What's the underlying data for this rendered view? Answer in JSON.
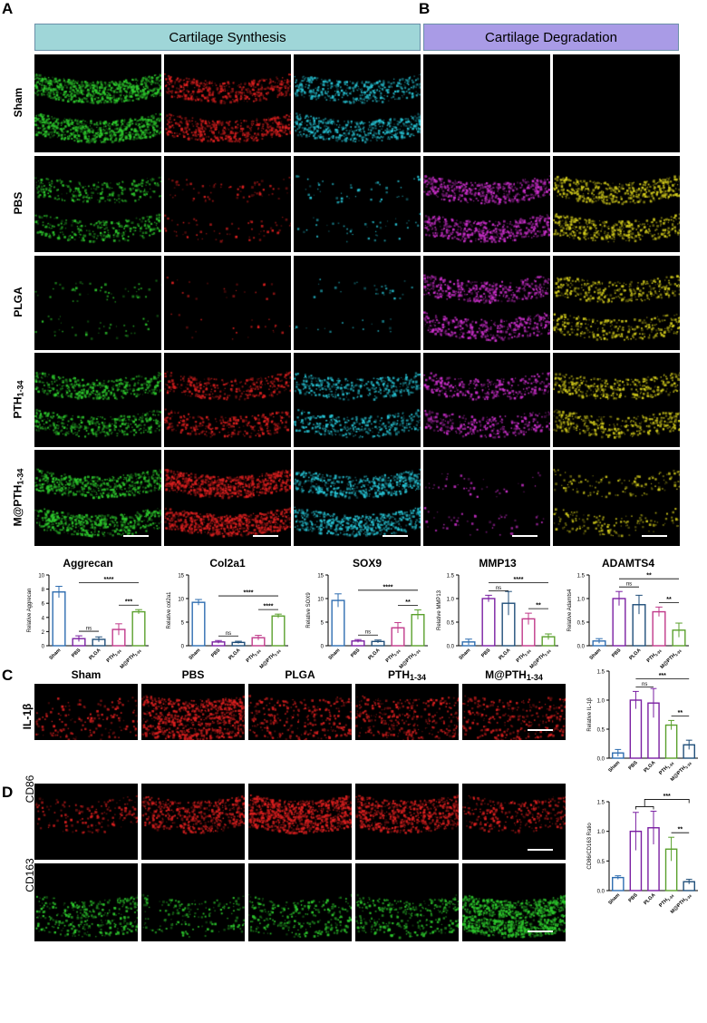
{
  "panels": {
    "a": "A",
    "b": "B",
    "c": "C",
    "d": "D"
  },
  "banners": {
    "synthesis": "Cartilage Synthesis",
    "degradation": "Cartilage Degradation"
  },
  "row_labels": [
    "Sham",
    "PBS",
    "PLGA",
    "PTH1-34",
    "M@PTH1-34"
  ],
  "row_labels_fmt": [
    {
      "main": "Sham",
      "sub": ""
    },
    {
      "main": "PBS",
      "sub": ""
    },
    {
      "main": "PLGA",
      "sub": ""
    },
    {
      "main": "PTH",
      "sub": "1-34"
    },
    {
      "main": "M@PTH",
      "sub": "1-34"
    }
  ],
  "c_cols": [
    {
      "main": "Sham",
      "sub": ""
    },
    {
      "main": "PBS",
      "sub": ""
    },
    {
      "main": "PLGA",
      "sub": ""
    },
    {
      "main": "PTH",
      "sub": "1-34"
    },
    {
      "main": "M@PTH",
      "sub": "1-34"
    }
  ],
  "c_row_label": "IL-1β",
  "d_row_labels": [
    "CD86",
    "CD163"
  ],
  "colors": {
    "sham": "#2e6db0",
    "pbs": "#7a1fa2",
    "plga": "#1f4e79",
    "pth": "#5aa02c",
    "mpth": "#5aa02c",
    "pth_pink": "#c0398a",
    "banner_syn": "#9fd6d8",
    "banner_deg": "#a99be6",
    "green_stain": "#2ecc2e",
    "red_stain": "#e02020",
    "cyan_stain": "#27c5d6",
    "magenta_stain": "#d030d0",
    "yellow_stain": "#d6cf1c"
  },
  "chart_data": [
    {
      "type": "bar",
      "title": "Aggrecan",
      "ylabel": "Relative Aggrecan",
      "categories": [
        "Sham",
        "PBS",
        "PLGA",
        "PTH1-34",
        "M@PTH1-34"
      ],
      "values": [
        7.6,
        1.0,
        0.9,
        2.3,
        4.8
      ],
      "errors": [
        0.8,
        0.4,
        0.35,
        0.8,
        0.3
      ],
      "ylim": [
        0,
        10
      ],
      "yticks": [
        0,
        2,
        4,
        6,
        8,
        10
      ],
      "sig": [
        {
          "from": 1,
          "to": 4,
          "label": "****"
        },
        {
          "from": 1,
          "to": 2,
          "label": "ns"
        },
        {
          "from": 3,
          "to": 4,
          "label": "***"
        }
      ]
    },
    {
      "type": "bar",
      "title": "Col2a1",
      "ylabel": "Relative col2a1",
      "categories": [
        "Sham",
        "PBS",
        "PLGA",
        "PTH1-34",
        "M@PTH1-34"
      ],
      "values": [
        9.2,
        0.8,
        0.7,
        1.7,
        6.3
      ],
      "errors": [
        0.6,
        0.3,
        0.25,
        0.5,
        0.4
      ],
      "ylim": [
        0,
        15
      ],
      "yticks": [
        0,
        5,
        10,
        15
      ],
      "sig": [
        {
          "from": 1,
          "to": 4,
          "label": "****"
        },
        {
          "from": 1,
          "to": 2,
          "label": "ns"
        },
        {
          "from": 3,
          "to": 4,
          "label": "****"
        }
      ]
    },
    {
      "type": "bar",
      "title": "SOX9",
      "ylabel": "Relative SOX9",
      "categories": [
        "Sham",
        "PBS",
        "PLGA",
        "PTH1-34",
        "M@PTH1-34"
      ],
      "values": [
        9.6,
        1.0,
        0.9,
        3.8,
        6.6
      ],
      "errors": [
        1.4,
        0.3,
        0.3,
        1.1,
        1.0
      ],
      "ylim": [
        0,
        15
      ],
      "yticks": [
        0,
        5,
        10,
        15
      ],
      "sig": [
        {
          "from": 1,
          "to": 4,
          "label": "****"
        },
        {
          "from": 1,
          "to": 2,
          "label": "ns"
        },
        {
          "from": 3,
          "to": 4,
          "label": "**"
        }
      ]
    },
    {
      "type": "bar",
      "title": "MMP13",
      "ylabel": "Relative MMP13",
      "categories": [
        "Sham",
        "PBS",
        "PLGA",
        "PTH1-34",
        "M@PTH1-34"
      ],
      "values": [
        0.08,
        1.0,
        0.9,
        0.57,
        0.19
      ],
      "errors": [
        0.06,
        0.07,
        0.25,
        0.12,
        0.06
      ],
      "ylim": [
        0,
        1.5
      ],
      "yticks": [
        0.0,
        0.5,
        1.0,
        1.5
      ],
      "sig": [
        {
          "from": 1,
          "to": 4,
          "label": "****"
        },
        {
          "from": 1,
          "to": 2,
          "label": "ns"
        },
        {
          "from": 3,
          "to": 4,
          "label": "**"
        }
      ]
    },
    {
      "type": "bar",
      "title": "ADAMTS4",
      "ylabel": "Relative Adamts4",
      "categories": [
        "Sham",
        "PBS",
        "PLGA",
        "PTH1-34",
        "M@PTH1-34"
      ],
      "values": [
        0.1,
        1.0,
        0.87,
        0.72,
        0.33
      ],
      "errors": [
        0.05,
        0.15,
        0.2,
        0.1,
        0.15
      ],
      "ylim": [
        0,
        1.5
      ],
      "yticks": [
        0.0,
        0.5,
        1.0,
        1.5
      ],
      "sig": [
        {
          "from": 1,
          "to": 4,
          "label": "**"
        },
        {
          "from": 1,
          "to": 2,
          "label": "ns"
        },
        {
          "from": 3,
          "to": 4,
          "label": "**"
        }
      ]
    },
    {
      "type": "bar",
      "title": "",
      "ylabel": "Relative IL-1β",
      "categories": [
        "Sham",
        "PBS",
        "PLGA",
        "PTH1-34",
        "M@PTH1-34"
      ],
      "values": [
        0.09,
        1.0,
        0.95,
        0.57,
        0.23
      ],
      "errors": [
        0.06,
        0.15,
        0.25,
        0.08,
        0.08
      ],
      "ylim": [
        0,
        1.5
      ],
      "yticks": [
        0.0,
        0.5,
        1.0,
        1.5
      ],
      "sig": [
        {
          "from": 1,
          "to": 4,
          "label": "***"
        },
        {
          "from": 1,
          "to": 2,
          "label": "ns"
        },
        {
          "from": 3,
          "to": 4,
          "label": "**"
        }
      ]
    },
    {
      "type": "bar",
      "title": "",
      "ylabel": "CD86/CD163 Ratio",
      "categories": [
        "Sham",
        "PBS",
        "PLGA",
        "PTH1-34",
        "M@PTH1-34"
      ],
      "values": [
        0.22,
        1.0,
        1.06,
        0.7,
        0.15
      ],
      "errors": [
        0.03,
        0.32,
        0.28,
        0.2,
        0.04
      ],
      "ylim": [
        0,
        1.5
      ],
      "yticks": [
        0.0,
        0.5,
        1.0,
        1.5
      ],
      "sig": [
        {
          "from": 1,
          "to": 4,
          "label": "***",
          "bracket12": true
        },
        {
          "from": 3,
          "to": 4,
          "label": "**"
        }
      ]
    }
  ]
}
